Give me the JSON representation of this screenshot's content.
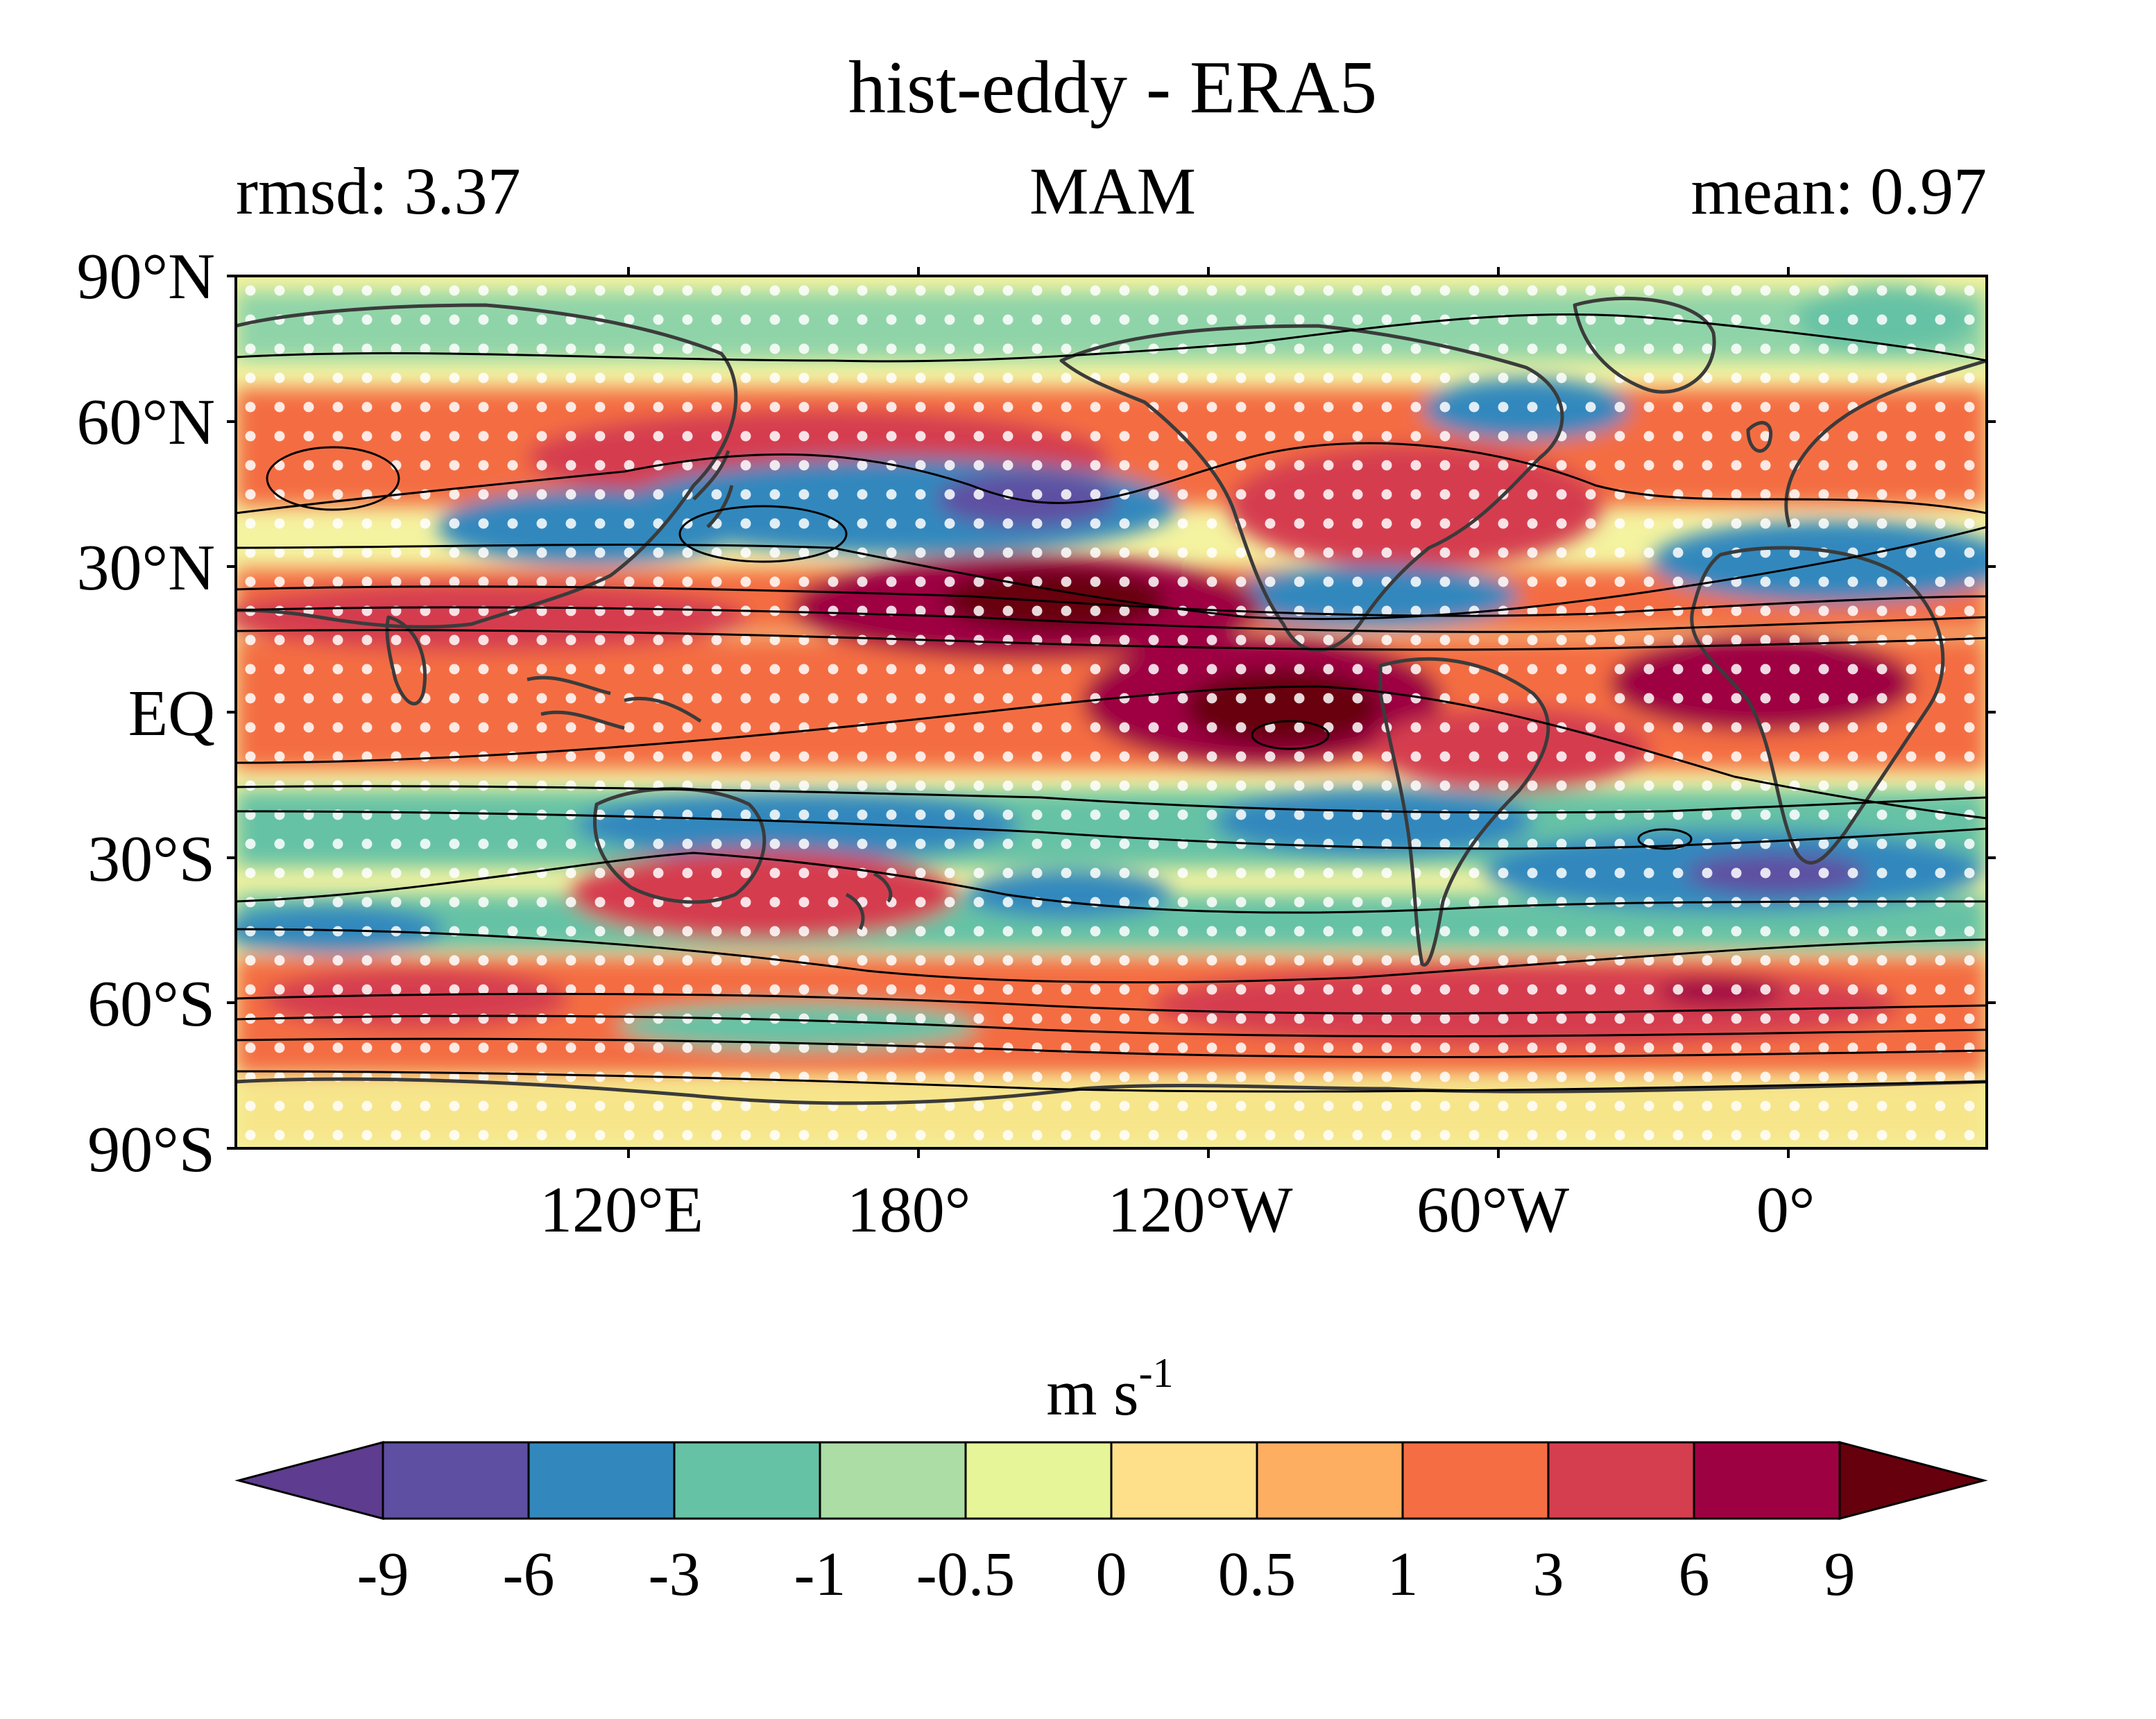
{
  "title": "hist-eddy - ERA5",
  "stats": {
    "left": "rmsd: 3.37",
    "center": "MAM",
    "right": "mean: 0.97"
  },
  "map": {
    "lat_ticks": [
      "90°N",
      "60°N",
      "30°N",
      "EQ",
      "30°S",
      "60°S",
      "90°S"
    ],
    "lon_ticks": [
      "120°E",
      "180°",
      "120°W",
      "60°W",
      "0°"
    ],
    "stippling": "white dots",
    "contours": "black lines",
    "coastlines": "dark gray"
  },
  "colorbar": {
    "unit_main": "m s",
    "unit_sup": "-1",
    "extend": "both",
    "labels": [
      "-9",
      "-6",
      "-3",
      "-1",
      "-0.5",
      "0",
      "0.5",
      "1",
      "3",
      "6",
      "9"
    ],
    "colors": [
      "#5e4fa2",
      "#3288bd",
      "#66c2a5",
      "#abdda4",
      "#e6f598",
      "#fee08b",
      "#fdae61",
      "#f46d43",
      "#d53e4f",
      "#9e0142"
    ],
    "under_color": "#5e3c8f",
    "over_color": "#67000d"
  }
}
